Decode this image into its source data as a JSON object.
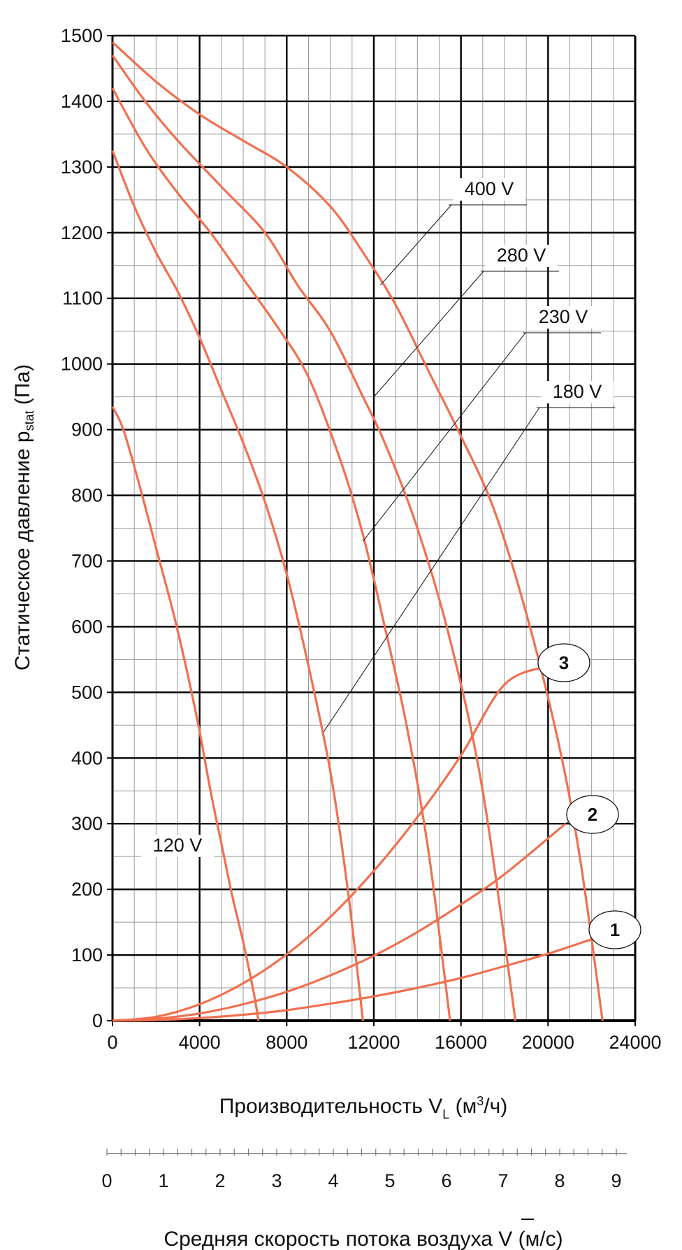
{
  "chart_data": {
    "type": "line",
    "xlabel": "Производительность V",
    "xlabel_sub": "L",
    "xlabel_unit_pre": " (м",
    "xlabel_unit_sup": "3",
    "xlabel_unit_post": "/ч)",
    "ylabel": "Статическое давление p",
    "ylabel_sub": "stat",
    "ylabel_unit": " (Па)",
    "xlim": [
      0,
      24000
    ],
    "ylim": [
      0,
      1500
    ],
    "x_ticks": [
      "0",
      "4000",
      "8000",
      "12000",
      "16000",
      "20000",
      "24000"
    ],
    "y_ticks": [
      "0",
      "100",
      "200",
      "300",
      "400",
      "500",
      "600",
      "700",
      "800",
      "900",
      "1000",
      "1100",
      "1200",
      "1300",
      "1400",
      "1500"
    ],
    "grid": true,
    "line_color": "#f07050",
    "velocity_axis": {
      "label": "Средняя скорость потока воздуха ",
      "symbol": "V",
      "unit": " (м/с)",
      "ticks": [
        "0",
        "1",
        "2",
        "3",
        "4",
        "5",
        "6",
        "7",
        "8",
        "9"
      ],
      "range": [
        0,
        9
      ]
    },
    "series": [
      {
        "name": "120 V",
        "x": [
          0,
          500,
          1200,
          2000,
          2800,
          3500,
          4000,
          4500,
          5000,
          5500,
          6000,
          6500,
          6700
        ],
        "y": [
          935,
          900,
          820,
          720,
          620,
          520,
          440,
          350,
          270,
          190,
          120,
          40,
          0
        ]
      },
      {
        "name": "180 V",
        "x": [
          0,
          1000,
          2000,
          3000,
          4000,
          5000,
          6000,
          7000,
          8000,
          9000,
          10000,
          10800,
          11500
        ],
        "y": [
          1325,
          1240,
          1170,
          1110,
          1040,
          960,
          880,
          790,
          680,
          540,
          380,
          200,
          0
        ]
      },
      {
        "name": "230 V",
        "x": [
          0,
          1500,
          3000,
          4500,
          6000,
          7500,
          9000,
          10500,
          11500,
          12500,
          13500,
          14500,
          15500
        ],
        "y": [
          1420,
          1330,
          1260,
          1200,
          1130,
          1060,
          980,
          850,
          740,
          600,
          450,
          260,
          0
        ]
      },
      {
        "name": "280 V",
        "x": [
          0,
          1500,
          3000,
          5000,
          7000,
          8500,
          10000,
          11500,
          12500,
          14000,
          15500,
          17000,
          18500
        ],
        "y": [
          1470,
          1400,
          1340,
          1270,
          1200,
          1120,
          1050,
          950,
          880,
          750,
          580,
          350,
          0
        ]
      },
      {
        "name": "400 V",
        "x": [
          0,
          2000,
          4000,
          6000,
          8000,
          10000,
          11500,
          13000,
          14500,
          16000,
          17500,
          19000,
          20500,
          21500,
          22500
        ],
        "y": [
          1490,
          1430,
          1380,
          1340,
          1300,
          1240,
          1170,
          1090,
          990,
          890,
          780,
          620,
          420,
          240,
          0
        ]
      }
    ],
    "system_curves": [
      {
        "name": "1",
        "x": [
          0,
          2000,
          4000,
          6000,
          8000,
          10000,
          12000,
          14000,
          16000,
          18000,
          20000,
          22000
        ],
        "y": [
          0,
          1,
          4,
          9,
          16,
          26,
          37,
          50,
          65,
          83,
          102,
          124
        ]
      },
      {
        "name": "2",
        "x": [
          0,
          2000,
          4000,
          6000,
          8000,
          10000,
          12000,
          14000,
          16000,
          18000,
          20800
        ],
        "y": [
          0,
          3,
          11,
          25,
          44,
          69,
          99,
          135,
          177,
          223,
          300
        ]
      },
      {
        "name": "3",
        "x": [
          0,
          2000,
          4000,
          6000,
          8000,
          10000,
          12000,
          14000,
          16000,
          18000,
          20000
        ],
        "y": [
          0,
          6,
          25,
          57,
          101,
          158,
          228,
          310,
          404,
          512,
          540
        ]
      }
    ]
  }
}
